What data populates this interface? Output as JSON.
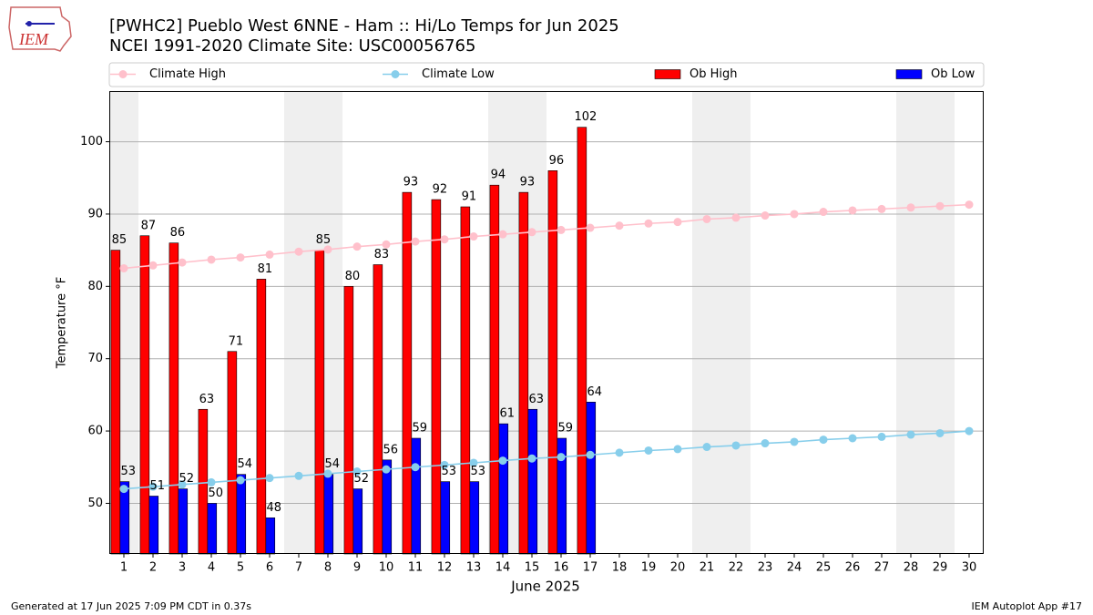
{
  "logo_text": "IEM",
  "footer_left": "Generated at 17 Jun 2025 7:09 PM CDT in 0.37s",
  "footer_right": "IEM Autoplot App #17",
  "chart_data": {
    "type": "bar",
    "title": "[PWHC2] Pueblo West 6NNE - Ham :: Hi/Lo Temps for Jun 2025",
    "subtitle": "NCEI 1991-2020 Climate Site: USC00056765",
    "xlabel": "June 2025",
    "ylabel": "Temperature °F",
    "x": [
      1,
      2,
      3,
      4,
      5,
      6,
      7,
      8,
      9,
      10,
      11,
      12,
      13,
      14,
      15,
      16,
      17,
      18,
      19,
      20,
      21,
      22,
      23,
      24,
      25,
      26,
      27,
      28,
      29,
      30
    ],
    "xlim": [
      0.5,
      30.5
    ],
    "xticks": [
      1,
      2,
      3,
      4,
      5,
      6,
      7,
      8,
      9,
      10,
      11,
      12,
      13,
      14,
      15,
      16,
      17,
      18,
      19,
      20,
      21,
      22,
      23,
      24,
      25,
      26,
      27,
      28,
      29,
      30
    ],
    "ylim": [
      43,
      107
    ],
    "yticks": [
      50,
      60,
      70,
      80,
      90,
      100
    ],
    "grid": true,
    "shaded_days": [
      1,
      7,
      8,
      14,
      15,
      21,
      22,
      28,
      29
    ],
    "shade_color": "#efefef",
    "series": [
      {
        "name": "Climate High",
        "kind": "line",
        "color": "#ffc0cb",
        "values": [
          82.5,
          82.9,
          83.3,
          83.7,
          84.0,
          84.4,
          84.8,
          85.1,
          85.5,
          85.8,
          86.2,
          86.5,
          86.9,
          87.2,
          87.5,
          87.8,
          88.1,
          88.4,
          88.7,
          88.9,
          89.3,
          89.5,
          89.8,
          90.0,
          90.3,
          90.5,
          90.7,
          90.9,
          91.1,
          91.3
        ]
      },
      {
        "name": "Climate Low",
        "kind": "line",
        "color": "#87ceeb",
        "values": [
          52.0,
          52.3,
          52.6,
          52.9,
          53.2,
          53.5,
          53.8,
          54.1,
          54.4,
          54.7,
          55.0,
          55.3,
          55.6,
          55.9,
          56.2,
          56.4,
          56.7,
          57.0,
          57.3,
          57.5,
          57.8,
          58.0,
          58.3,
          58.5,
          58.8,
          59.0,
          59.2,
          59.5,
          59.7,
          60.0
        ]
      },
      {
        "name": "Ob High",
        "kind": "bar",
        "color": "#ff0000",
        "values": [
          85,
          87,
          86,
          63,
          71,
          81,
          null,
          85,
          80,
          83,
          93,
          92,
          91,
          94,
          93,
          96,
          102,
          null,
          null,
          null,
          null,
          null,
          null,
          null,
          null,
          null,
          null,
          null,
          null,
          null
        ]
      },
      {
        "name": "Ob Low",
        "kind": "bar",
        "color": "#0000ff",
        "values": [
          53,
          51,
          52,
          50,
          54,
          48,
          null,
          54,
          52,
          56,
          59,
          53,
          53,
          61,
          63,
          59,
          64,
          null,
          null,
          null,
          null,
          null,
          null,
          null,
          null,
          null,
          null,
          null,
          null,
          null
        ]
      }
    ]
  }
}
